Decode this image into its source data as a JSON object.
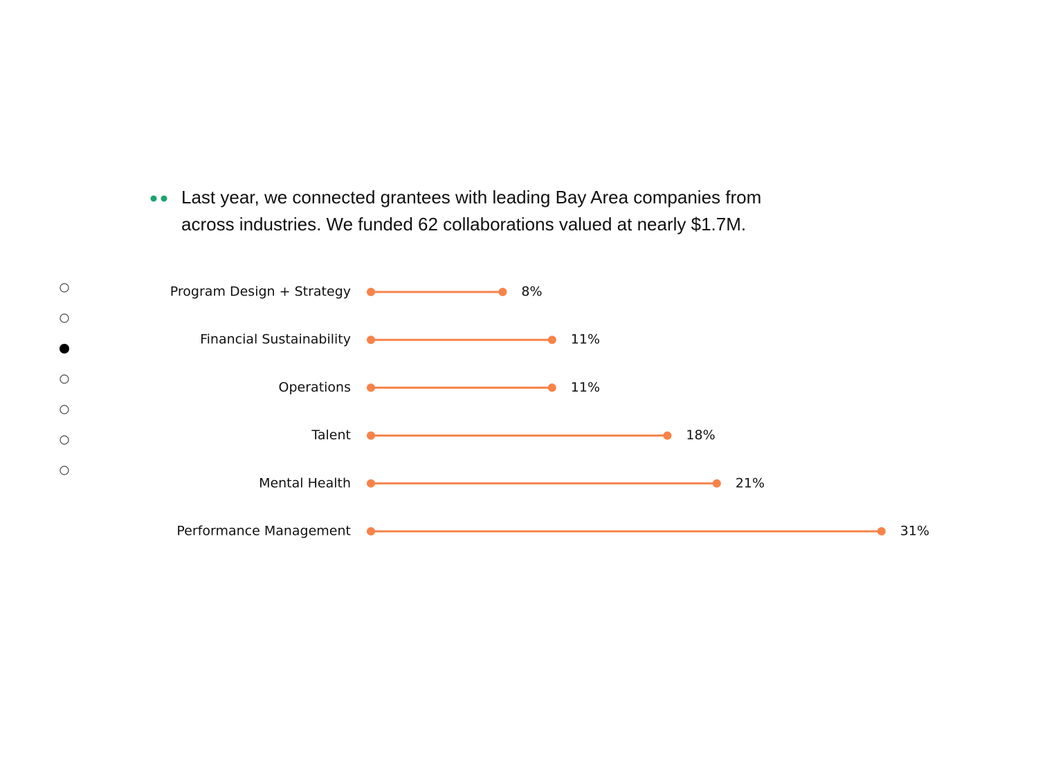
{
  "intro": [
    "Last year, we connected grantees with leading Bay Area companies from",
    "across industries. We funded 62 collaborations valued at nearly $1.7M."
  ],
  "chart_data": {
    "type": "lollipop",
    "categories": [
      "Program Design + Strategy",
      "Financial Sustainability",
      "Operations",
      "Talent",
      "Mental Health",
      "Performance Management"
    ],
    "values": [
      8,
      11,
      11,
      18,
      21,
      31
    ],
    "value_labels": [
      "8%",
      "11%",
      "11%",
      "18%",
      "21%",
      "31%"
    ],
    "color": "#f7834a"
  }
}
